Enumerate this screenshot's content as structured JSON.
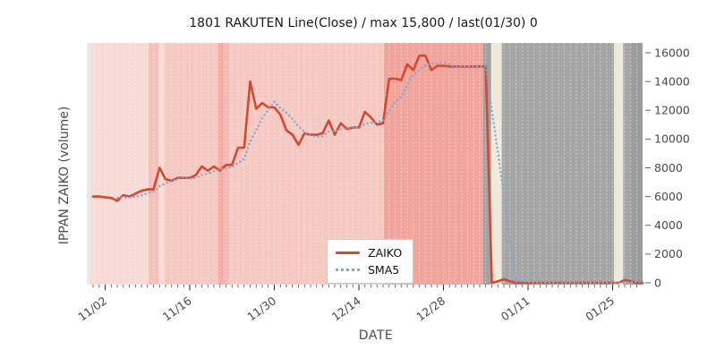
{
  "figure": {
    "title": "1801 RAKUTEN Line(Close) / max 15,800 / last(01/30) 0",
    "xlabel": "DATE",
    "ylabel": "IPPAN ZAIKO (volume)",
    "background_color": "#ffffff"
  },
  "legend": {
    "items": [
      {
        "label": "ZAIKO",
        "color": "#d7472f",
        "style": "solid"
      },
      {
        "label": "SMA5",
        "color": "#7fa8d4",
        "style": "dotted"
      }
    ]
  },
  "chart_data": {
    "type": "line",
    "title": "1801 RAKUTEN Line(Close) / max 15,800 / last(01/30) 0",
    "xlabel": "DATE",
    "ylabel": "IPPAN ZAIKO (volume)",
    "max_value": 15800,
    "last_label": "01/30",
    "last_value": 0,
    "ylim": [
      -150,
      16700
    ],
    "grid": "vertical-dashed-white",
    "legend_position": "lower-center",
    "y_ticks": [
      0,
      2000,
      4000,
      6000,
      8000,
      10000,
      12000,
      14000,
      16000
    ],
    "x_ticks": [
      {
        "day": 2,
        "label": "11/02"
      },
      {
        "day": 16,
        "label": "11/16"
      },
      {
        "day": 30,
        "label": "11/30"
      },
      {
        "day": 44,
        "label": "12/14"
      },
      {
        "day": 58,
        "label": "12/28"
      },
      {
        "day": 72,
        "label": "01/11"
      },
      {
        "day": 86,
        "label": "01/25"
      }
    ],
    "dates": [
      "10/31",
      "11/01",
      "11/02",
      "11/03",
      "11/04",
      "11/05",
      "11/06",
      "11/07",
      "11/08",
      "11/09",
      "11/10",
      "11/11",
      "11/12",
      "11/13",
      "11/14",
      "11/15",
      "11/16",
      "11/17",
      "11/18",
      "11/19",
      "11/20",
      "11/21",
      "11/22",
      "11/23",
      "11/24",
      "11/25",
      "11/26",
      "11/27",
      "11/28",
      "11/29",
      "11/30",
      "12/01",
      "12/02",
      "12/03",
      "12/04",
      "12/05",
      "12/06",
      "12/07",
      "12/08",
      "12/09",
      "12/10",
      "12/11",
      "12/12",
      "12/13",
      "12/14",
      "12/15",
      "12/16",
      "12/17",
      "12/18",
      "12/19",
      "12/20",
      "12/21",
      "12/22",
      "12/23",
      "12/24",
      "12/25",
      "12/26",
      "12/27",
      "12/28",
      "12/29",
      "12/30",
      "12/31",
      "01/01",
      "01/02",
      "01/03",
      "01/04",
      "01/05",
      "01/06",
      "01/07",
      "01/08",
      "01/09",
      "01/10",
      "01/11",
      "01/12",
      "01/13",
      "01/14",
      "01/15",
      "01/16",
      "01/17",
      "01/18",
      "01/19",
      "01/20",
      "01/21",
      "01/22",
      "01/23",
      "01/24",
      "01/25",
      "01/26",
      "01/27",
      "01/28",
      "01/29",
      "01/30"
    ],
    "series": [
      {
        "name": "ZAIKO",
        "color": "#d7472f",
        "style": "solid",
        "values": [
          6000,
          6000,
          5950,
          5900,
          5700,
          6100,
          6000,
          6200,
          6400,
          6500,
          6500,
          8000,
          7200,
          7100,
          7300,
          7300,
          7300,
          7500,
          8100,
          7800,
          8100,
          7800,
          8200,
          8200,
          9400,
          9400,
          14000,
          12100,
          12500,
          12200,
          12200,
          11700,
          10600,
          10300,
          9600,
          10400,
          10300,
          10300,
          10400,
          11300,
          10300,
          11100,
          10700,
          10800,
          10800,
          11900,
          11500,
          11000,
          11100,
          14200,
          14200,
          14100,
          15200,
          14800,
          15800,
          15800,
          14800,
          15100,
          15100,
          15050,
          15050,
          15050,
          15050,
          15050,
          15050,
          15050,
          0,
          100,
          250,
          100,
          0,
          0,
          0,
          0,
          0,
          0,
          0,
          0,
          0,
          0,
          0,
          0,
          0,
          0,
          0,
          0,
          0,
          0,
          200,
          100,
          0,
          0
        ]
      },
      {
        "name": "SMA5",
        "color": "#7fa8d4",
        "style": "dotted",
        "values": [
          null,
          null,
          null,
          null,
          5910,
          5930,
          5930,
          5980,
          6080,
          6240,
          6320,
          6720,
          6920,
          7060,
          7220,
          7380,
          7240,
          7300,
          7500,
          7600,
          7760,
          7860,
          8000,
          8020,
          8340,
          8600,
          9840,
          10620,
          11480,
          12040,
          12600,
          12140,
          11840,
          11400,
          10880,
          10520,
          10240,
          10180,
          10200,
          10540,
          10520,
          10680,
          10760,
          10840,
          10740,
          11060,
          11140,
          11200,
          11260,
          11940,
          12600,
          12920,
          13760,
          14500,
          14820,
          15140,
          15280,
          15260,
          15320,
          15170,
          15020,
          15070,
          15060,
          15050,
          15050,
          15050,
          12040,
          9050,
          6090,
          3100,
          90,
          90,
          70,
          20,
          0,
          0,
          0,
          0,
          0,
          0,
          0,
          0,
          0,
          0,
          0,
          0,
          0,
          0,
          40,
          60,
          60,
          60
        ]
      }
    ],
    "background_bands": [
      {
        "from": -1.05,
        "to": -0.45,
        "color": "#e9e9e9"
      },
      {
        "from": -0.45,
        "to": 9.15,
        "color": "#f8dbd6"
      },
      {
        "from": 9.15,
        "to": 10.9,
        "color": "#f4c2ba"
      },
      {
        "from": 10.9,
        "to": 11.8,
        "color": "#f8dbd6"
      },
      {
        "from": 11.8,
        "to": 20.7,
        "color": "#f6cac2"
      },
      {
        "from": 20.7,
        "to": 21.6,
        "color": "#f1aba1"
      },
      {
        "from": 21.6,
        "to": 22.45,
        "color": "#f4b8af"
      },
      {
        "from": 22.45,
        "to": 48.15,
        "color": "#f6cac2"
      },
      {
        "from": 48.15,
        "to": 64.55,
        "color": "#f2a59c"
      },
      {
        "from": 64.55,
        "to": 65.9,
        "color": "#a2a2a2"
      },
      {
        "from": 65.9,
        "to": 67.65,
        "color": "#f1e9da"
      },
      {
        "from": 67.65,
        "to": 86.25,
        "color": "#a6a6a6"
      },
      {
        "from": 86.25,
        "to": 87.75,
        "color": "#f1e9da"
      },
      {
        "from": 87.75,
        "to": 88.9,
        "color": "#a6a6a6"
      },
      {
        "from": 88.9,
        "to": 91.3,
        "color": "#9c9c9c"
      }
    ]
  }
}
